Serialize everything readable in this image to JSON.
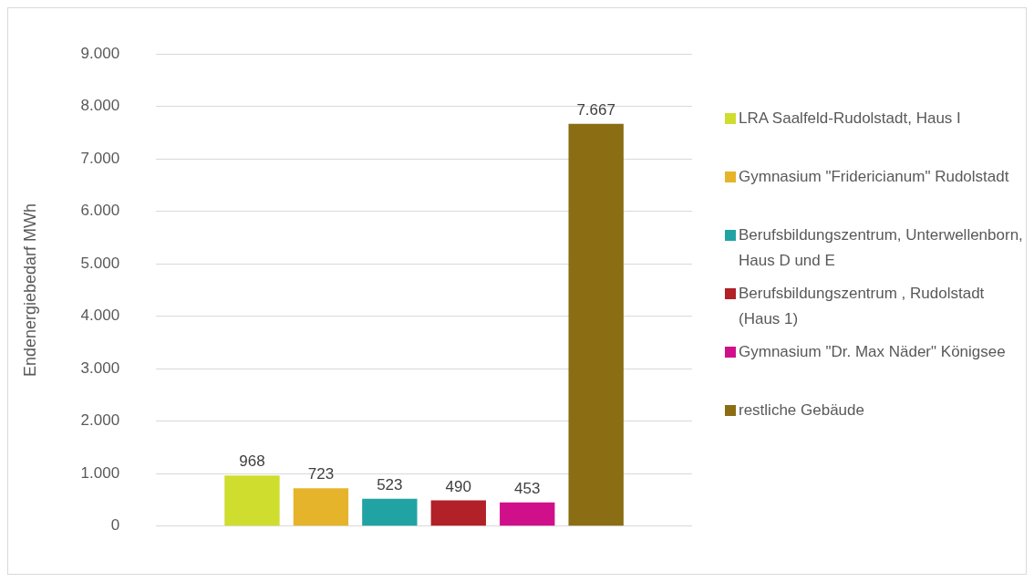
{
  "chart_data": {
    "type": "bar",
    "categories": [
      null
    ],
    "ylabel": "Endenergiebedarf MWh",
    "ylim": [
      0,
      9000
    ],
    "yticks": [
      {
        "value": 0,
        "label": "0"
      },
      {
        "value": 1000,
        "label": "1.000"
      },
      {
        "value": 2000,
        "label": "2.000"
      },
      {
        "value": 3000,
        "label": "3.000"
      },
      {
        "value": 4000,
        "label": "4.000"
      },
      {
        "value": 5000,
        "label": "5.000"
      },
      {
        "value": 6000,
        "label": "6.000"
      },
      {
        "value": 7000,
        "label": "7.000"
      },
      {
        "value": 8000,
        "label": "8.000"
      },
      {
        "value": 9000,
        "label": "9.000"
      }
    ],
    "grid": "y",
    "legend": "right",
    "tick_labels": "y",
    "series": [
      {
        "name": "LRA Saalfeld-Rudolstadt, Haus I",
        "color": "#cfdd2e",
        "values": [
          968
        ],
        "value_labels": [
          "968"
        ]
      },
      {
        "name": "Gymnasium \"Fridericianum\" Rudolstadt",
        "color": "#e6b42a",
        "values": [
          723
        ],
        "value_labels": [
          "723"
        ]
      },
      {
        "name": "Berufsbildungszentrum, Unterwellenborn, Haus D und E",
        "color": "#22a3a3",
        "values": [
          523
        ],
        "value_labels": [
          "523"
        ]
      },
      {
        "name": "Berufsbildungszentrum , Rudolstadt (Haus 1)",
        "color": "#b22028",
        "values": [
          490
        ],
        "value_labels": [
          "490"
        ]
      },
      {
        "name": "Gymnasium \"Dr. Max Näder\" Königsee",
        "color": "#d0108a",
        "values": [
          453
        ],
        "value_labels": [
          "453"
        ]
      },
      {
        "name": "restliche Gebäude",
        "color": "#8b6d14",
        "values": [
          7667
        ],
        "value_labels": [
          "7.667"
        ]
      }
    ]
  }
}
